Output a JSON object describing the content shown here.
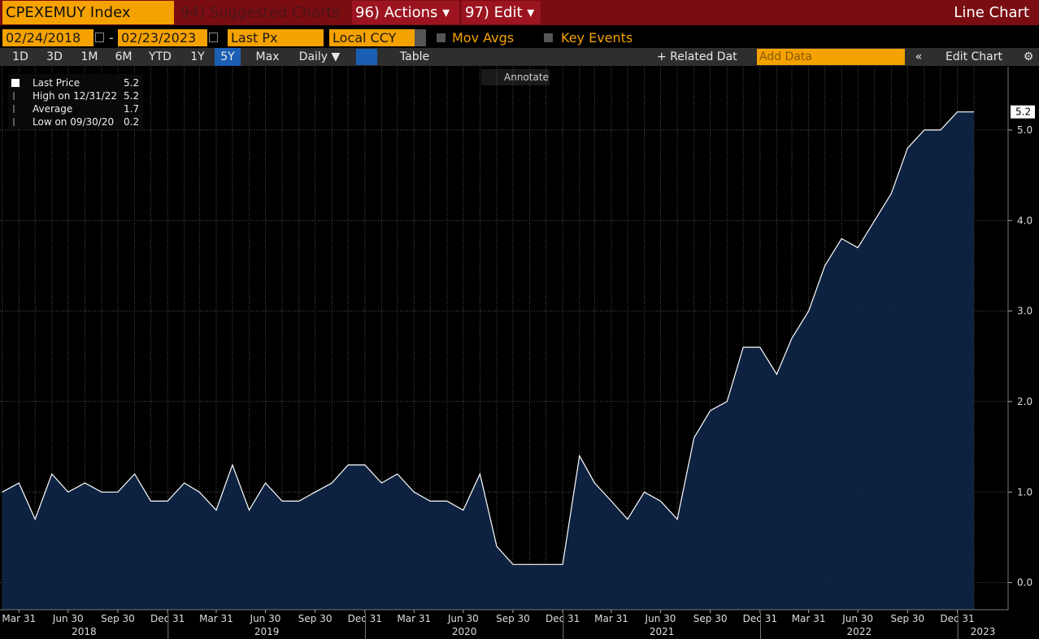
{
  "header": {
    "security": "CPEXEMUY Index",
    "suggested": "94) Suggested Charts",
    "actions": "96) Actions ▾",
    "edit": "97) Edit ▾",
    "chart_type_label": "Line Chart"
  },
  "controls": {
    "start_date": "02/24/2018",
    "separator": "-",
    "end_date": "02/23/2023",
    "field": "Last Px",
    "currency": "Local CCY",
    "mov_avgs": "Mov Avgs",
    "key_events": "Key Events"
  },
  "range_bar": {
    "ranges": [
      "1D",
      "3D",
      "1M",
      "6M",
      "YTD",
      "1Y",
      "5Y",
      "Max"
    ],
    "selected_index": 6,
    "frequency": "Daily ▼",
    "table": "Table",
    "related": "+ Related Dat",
    "add_data": "Add Data",
    "edit_chart": "Edit Chart"
  },
  "chart_data": {
    "type": "line",
    "annotate": "Annotate",
    "stats": [
      {
        "label": "Last Price",
        "value": 5.2
      },
      {
        "label": "High on 12/31/22",
        "value": 5.2
      },
      {
        "label": "Average",
        "value": 1.7
      },
      {
        "label": "Low on 09/30/20",
        "value": 0.2
      }
    ],
    "x": [
      "2018-02-28",
      "2018-03-31",
      "2018-04-30",
      "2018-05-31",
      "2018-06-30",
      "2018-07-31",
      "2018-08-31",
      "2018-09-30",
      "2018-10-31",
      "2018-11-30",
      "2018-12-31",
      "2019-01-31",
      "2019-02-28",
      "2019-03-31",
      "2019-04-30",
      "2019-05-31",
      "2019-06-30",
      "2019-07-31",
      "2019-08-31",
      "2019-09-30",
      "2019-10-31",
      "2019-11-30",
      "2019-12-31",
      "2020-01-31",
      "2020-02-29",
      "2020-03-31",
      "2020-04-30",
      "2020-05-31",
      "2020-06-30",
      "2020-07-31",
      "2020-08-31",
      "2020-09-30",
      "2020-10-31",
      "2020-11-30",
      "2020-12-31",
      "2021-01-31",
      "2021-02-28",
      "2021-03-31",
      "2021-04-30",
      "2021-05-31",
      "2021-06-30",
      "2021-07-31",
      "2021-08-31",
      "2021-09-30",
      "2021-10-31",
      "2021-11-30",
      "2021-12-31",
      "2022-01-31",
      "2022-02-28",
      "2022-03-31",
      "2022-04-30",
      "2022-05-31",
      "2022-06-30",
      "2022-07-31",
      "2022-08-31",
      "2022-09-30",
      "2022-10-31",
      "2022-11-30",
      "2022-12-31",
      "2023-01-31"
    ],
    "values": [
      1.0,
      1.1,
      0.7,
      1.2,
      1.0,
      1.1,
      1.0,
      1.0,
      1.2,
      0.9,
      0.9,
      1.1,
      1.0,
      0.8,
      1.3,
      0.8,
      1.1,
      0.9,
      0.9,
      1.0,
      1.1,
      1.3,
      1.3,
      1.1,
      1.2,
      1.0,
      0.9,
      0.9,
      0.8,
      1.2,
      0.4,
      0.2,
      0.2,
      0.2,
      0.2,
      1.4,
      1.1,
      0.9,
      0.7,
      1.0,
      0.9,
      0.7,
      1.6,
      1.9,
      2.0,
      2.6,
      2.6,
      2.3,
      2.7,
      3.0,
      3.5,
      3.8,
      3.7,
      4.0,
      4.3,
      4.8,
      5.0,
      5.0,
      5.2,
      5.2
    ],
    "color": "#ffffff",
    "area_color": "#0e2443",
    "xlim": [
      "2018-02-24",
      "2023-04-04"
    ],
    "xticks": [
      {
        "value": "2018-03-31",
        "label": "Mar 31"
      },
      {
        "value": "2018-06-30",
        "label": "Jun 30"
      },
      {
        "value": "2018-09-30",
        "label": "Sep 30"
      },
      {
        "value": "2018-12-31",
        "label": "Dec 31"
      },
      {
        "value": "2019-03-31",
        "label": "Mar 31"
      },
      {
        "value": "2019-06-30",
        "label": "Jun 30"
      },
      {
        "value": "2019-09-30",
        "label": "Sep 30"
      },
      {
        "value": "2019-12-31",
        "label": "Dec 31"
      },
      {
        "value": "2020-03-31",
        "label": "Mar 31"
      },
      {
        "value": "2020-06-30",
        "label": "Jun 30"
      },
      {
        "value": "2020-09-30",
        "label": "Sep 30"
      },
      {
        "value": "2020-12-31",
        "label": "Dec 31"
      },
      {
        "value": "2021-03-31",
        "label": "Mar 31"
      },
      {
        "value": "2021-06-30",
        "label": "Jun 30"
      },
      {
        "value": "2021-09-30",
        "label": "Sep 30"
      },
      {
        "value": "2021-12-31",
        "label": "Dec 31"
      },
      {
        "value": "2022-03-31",
        "label": "Mar 31"
      },
      {
        "value": "2022-06-30",
        "label": "Jun 30"
      },
      {
        "value": "2022-09-30",
        "label": "Sep 30"
      },
      {
        "value": "2022-12-31",
        "label": "Dec 31"
      }
    ],
    "year_ticks": [
      {
        "value": "2018-01-01",
        "label": "2018"
      },
      {
        "value": "2019-01-01",
        "label": "2019"
      },
      {
        "value": "2020-01-01",
        "label": "2020"
      },
      {
        "value": "2021-01-01",
        "label": "2021"
      },
      {
        "value": "2022-01-01",
        "label": "2022"
      },
      {
        "value": "2023-01-01",
        "label": "2023"
      }
    ],
    "ylim": [
      -0.3,
      5.7
    ],
    "yticks": [
      {
        "value": 0,
        "label": "0.0"
      },
      {
        "value": 1,
        "label": "1.0"
      },
      {
        "value": 2,
        "label": "2.0"
      },
      {
        "value": 3,
        "label": "3.0"
      },
      {
        "value": 4,
        "label": "4.0"
      },
      {
        "value": 5,
        "label": "5.0"
      }
    ],
    "grid": true
  }
}
